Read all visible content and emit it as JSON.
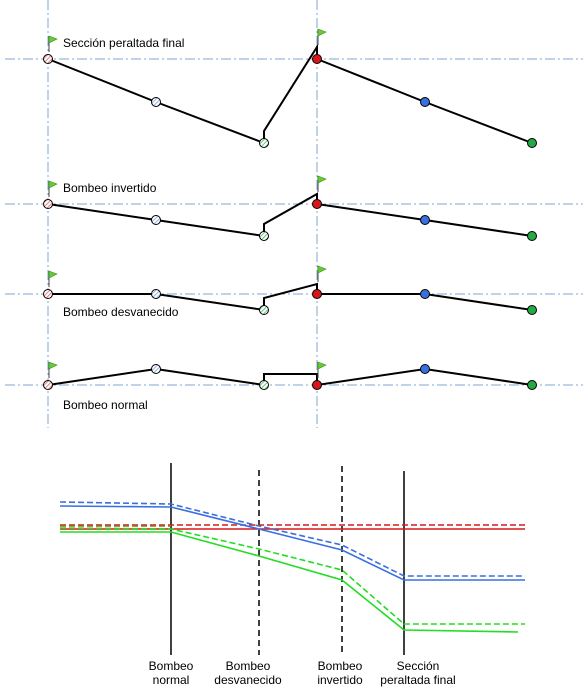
{
  "sections": [
    {
      "id": "peraltada-final",
      "label": "Sección peraltada final"
    },
    {
      "id": "bombeo-invertido",
      "label": "Bombeo invertido"
    },
    {
      "id": "bombeo-desvanecido",
      "label": "Bombeo desvanecido"
    },
    {
      "id": "bombeo-normal",
      "label": "Bombeo normal"
    }
  ],
  "bottom_labels": [
    {
      "id": "normal",
      "line1": "Bombeo",
      "line2": "normal"
    },
    {
      "id": "desvanecido",
      "line1": "Bombeo",
      "line2": "desvanecido"
    },
    {
      "id": "invertido",
      "line1": "Bombeo",
      "line2": "invertido"
    },
    {
      "id": "peraltada",
      "line1": "Sección",
      "line2": "peraltada final"
    }
  ],
  "colors": {
    "axis_dashdot": "#7fa7d0",
    "blue": "#3a6fe0",
    "red": "#d81818",
    "green": "#22dd22",
    "green_marker": "#22aa44",
    "flag": "#66cc33",
    "hatched_red": "#e06060",
    "hatched_blue": "#8fb0e8",
    "hatched_green": "#66cc88"
  }
}
